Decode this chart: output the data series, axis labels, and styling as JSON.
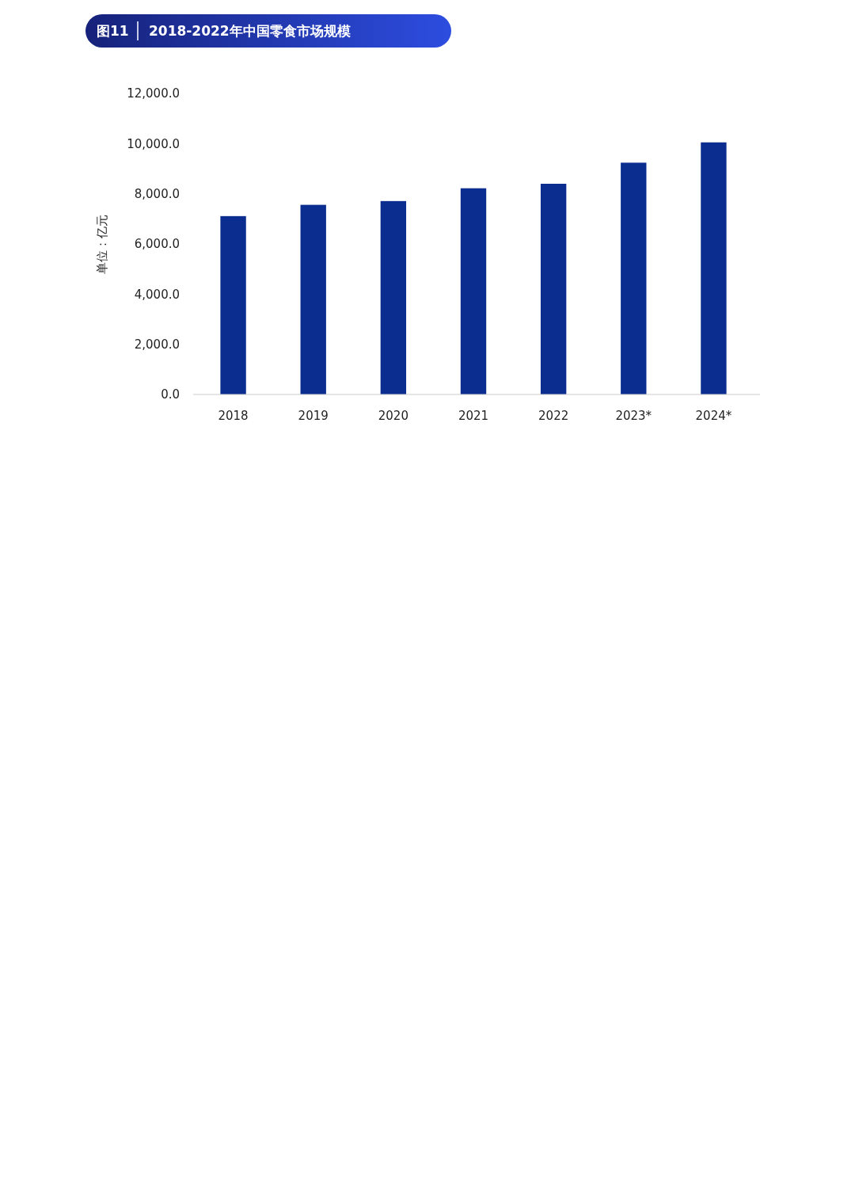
{
  "chart_data": {
    "type": "bar",
    "title": "2018-2022年中国零食市场规模",
    "annotations": [
      "图11"
    ],
    "ylabel": "单位：亿元",
    "categories": [
      "2018",
      "2019",
      "2020",
      "2021",
      "2022",
      "2023*",
      "2024*"
    ],
    "values": [
      7110,
      7560,
      7710,
      8220,
      8400,
      9240,
      10050
    ],
    "color": "#0b2d8f",
    "ylim": [
      0,
      12000
    ],
    "yticks": [
      {
        "value": 0,
        "label": "0.0"
      },
      {
        "value": 2000,
        "label": "2,000.0"
      },
      {
        "value": 4000,
        "label": "4,000.0"
      },
      {
        "value": 6000,
        "label": "6,000.0"
      },
      {
        "value": 8000,
        "label": "8,000.0"
      },
      {
        "value": 10000,
        "label": "10,000.0"
      },
      {
        "value": 12000,
        "label": "12,000.0"
      }
    ],
    "grid": false
  }
}
